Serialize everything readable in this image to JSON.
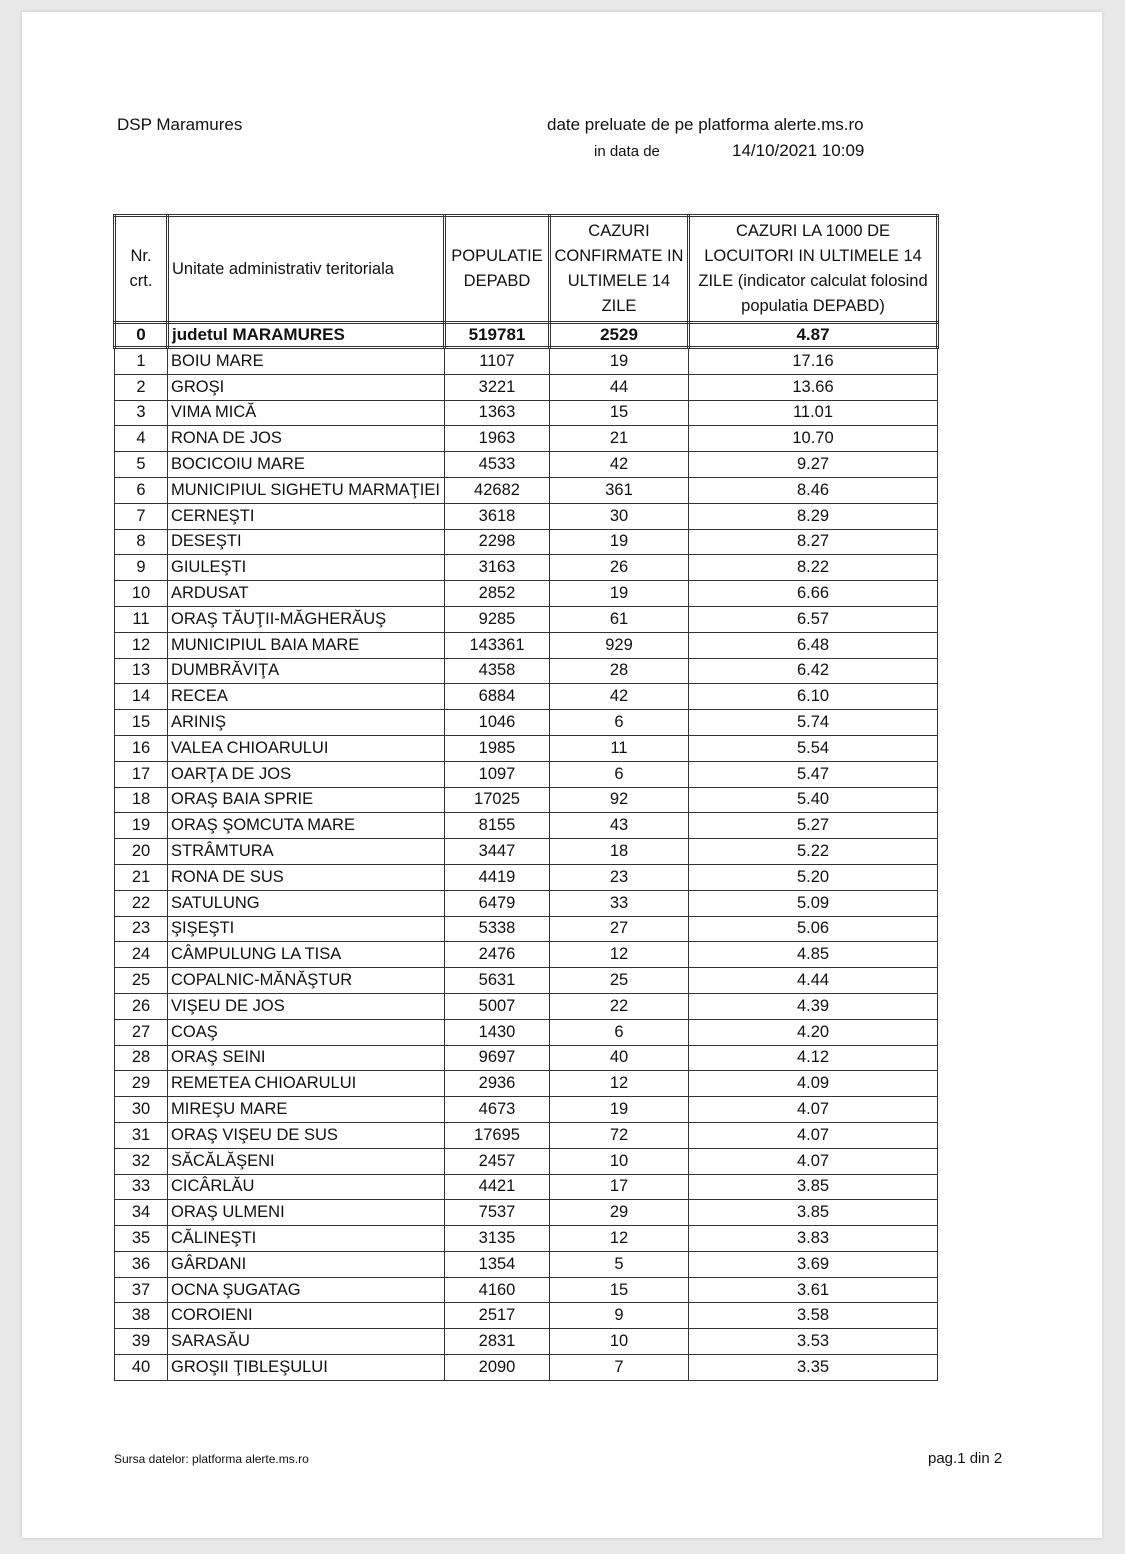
{
  "header": {
    "org": "DSP Maramures",
    "source_line": "date preluate de pe platforma alerte.ms.ro",
    "date_label": "in data de",
    "date_value": "14/10/2021 10:09"
  },
  "table": {
    "columns": [
      "Nr. crt.",
      "Unitate administrativ teritoriala",
      "POPULATIE DEPABD",
      "CAZURI CONFIRMATE IN ULTIMELE 14 ZILE",
      "CAZURI LA 1000 DE LOCUITORI IN ULTIMELE 14 ZILE (indicator calculat folosind populatia DEPABD)"
    ],
    "total": [
      "0",
      "judetul MARAMURES",
      "519781",
      "2529",
      "4.87"
    ],
    "rows": [
      [
        "1",
        "BOIU MARE",
        "1107",
        "19",
        "17.16"
      ],
      [
        "2",
        "GROŞI",
        "3221",
        "44",
        "13.66"
      ],
      [
        "3",
        "VIMA MICĂ",
        "1363",
        "15",
        "11.01"
      ],
      [
        "4",
        "RONA DE JOS",
        "1963",
        "21",
        "10.70"
      ],
      [
        "5",
        "BOCICOIU MARE",
        "4533",
        "42",
        "9.27"
      ],
      [
        "6",
        "MUNICIPIUL SIGHETU MARMAŢIEI",
        "42682",
        "361",
        "8.46"
      ],
      [
        "7",
        "CERNEŞTI",
        "3618",
        "30",
        "8.29"
      ],
      [
        "8",
        "DESEŞTI",
        "2298",
        "19",
        "8.27"
      ],
      [
        "9",
        "GIULEŞTI",
        "3163",
        "26",
        "8.22"
      ],
      [
        "10",
        "ARDUSAT",
        "2852",
        "19",
        "6.66"
      ],
      [
        "11",
        "ORAŞ TĂUŢII-MĂGHERĂUŞ",
        "9285",
        "61",
        "6.57"
      ],
      [
        "12",
        "MUNICIPIUL BAIA MARE",
        "143361",
        "929",
        "6.48"
      ],
      [
        "13",
        "DUMBRĂVIŢA",
        "4358",
        "28",
        "6.42"
      ],
      [
        "14",
        "RECEA",
        "6884",
        "42",
        "6.10"
      ],
      [
        "15",
        "ARINIŞ",
        "1046",
        "6",
        "5.74"
      ],
      [
        "16",
        "VALEA CHIOARULUI",
        "1985",
        "11",
        "5.54"
      ],
      [
        "17",
        "OARŢA DE JOS",
        "1097",
        "6",
        "5.47"
      ],
      [
        "18",
        "ORAŞ BAIA SPRIE",
        "17025",
        "92",
        "5.40"
      ],
      [
        "19",
        "ORAŞ ŞOMCUTA MARE",
        "8155",
        "43",
        "5.27"
      ],
      [
        "20",
        "STRÂMTURA",
        "3447",
        "18",
        "5.22"
      ],
      [
        "21",
        "RONA DE SUS",
        "4419",
        "23",
        "5.20"
      ],
      [
        "22",
        "SATULUNG",
        "6479",
        "33",
        "5.09"
      ],
      [
        "23",
        "ŞIŞEŞTI",
        "5338",
        "27",
        "5.06"
      ],
      [
        "24",
        "CÂMPULUNG LA TISA",
        "2476",
        "12",
        "4.85"
      ],
      [
        "25",
        "COPALNIC-MĂNĂŞTUR",
        "5631",
        "25",
        "4.44"
      ],
      [
        "26",
        "VIŞEU DE JOS",
        "5007",
        "22",
        "4.39"
      ],
      [
        "27",
        "COAŞ",
        "1430",
        "6",
        "4.20"
      ],
      [
        "28",
        "ORAŞ SEINI",
        "9697",
        "40",
        "4.12"
      ],
      [
        "29",
        "REMETEA CHIOARULUI",
        "2936",
        "12",
        "4.09"
      ],
      [
        "30",
        "MIREŞU MARE",
        "4673",
        "19",
        "4.07"
      ],
      [
        "31",
        "ORAŞ VIŞEU DE SUS",
        "17695",
        "72",
        "4.07"
      ],
      [
        "32",
        "SĂCĂLĂŞENI",
        "2457",
        "10",
        "4.07"
      ],
      [
        "33",
        "CICÂRLĂU",
        "4421",
        "17",
        "3.85"
      ],
      [
        "34",
        "ORAŞ ULMENI",
        "7537",
        "29",
        "3.85"
      ],
      [
        "35",
        "CĂLINEŞTI",
        "3135",
        "12",
        "3.83"
      ],
      [
        "36",
        "GÂRDANI",
        "1354",
        "5",
        "3.69"
      ],
      [
        "37",
        "OCNA ŞUGATAG",
        "4160",
        "15",
        "3.61"
      ],
      [
        "38",
        "COROIENI",
        "2517",
        "9",
        "3.58"
      ],
      [
        "39",
        "SARASĂU",
        "2831",
        "10",
        "3.53"
      ],
      [
        "40",
        "GROŞII ŢIBLEŞULUI",
        "2090",
        "7",
        "3.35"
      ]
    ]
  },
  "footer": {
    "source": "Sursa datelor:  platforma  alerte.ms.ro",
    "page": "pag.1 din 2"
  }
}
